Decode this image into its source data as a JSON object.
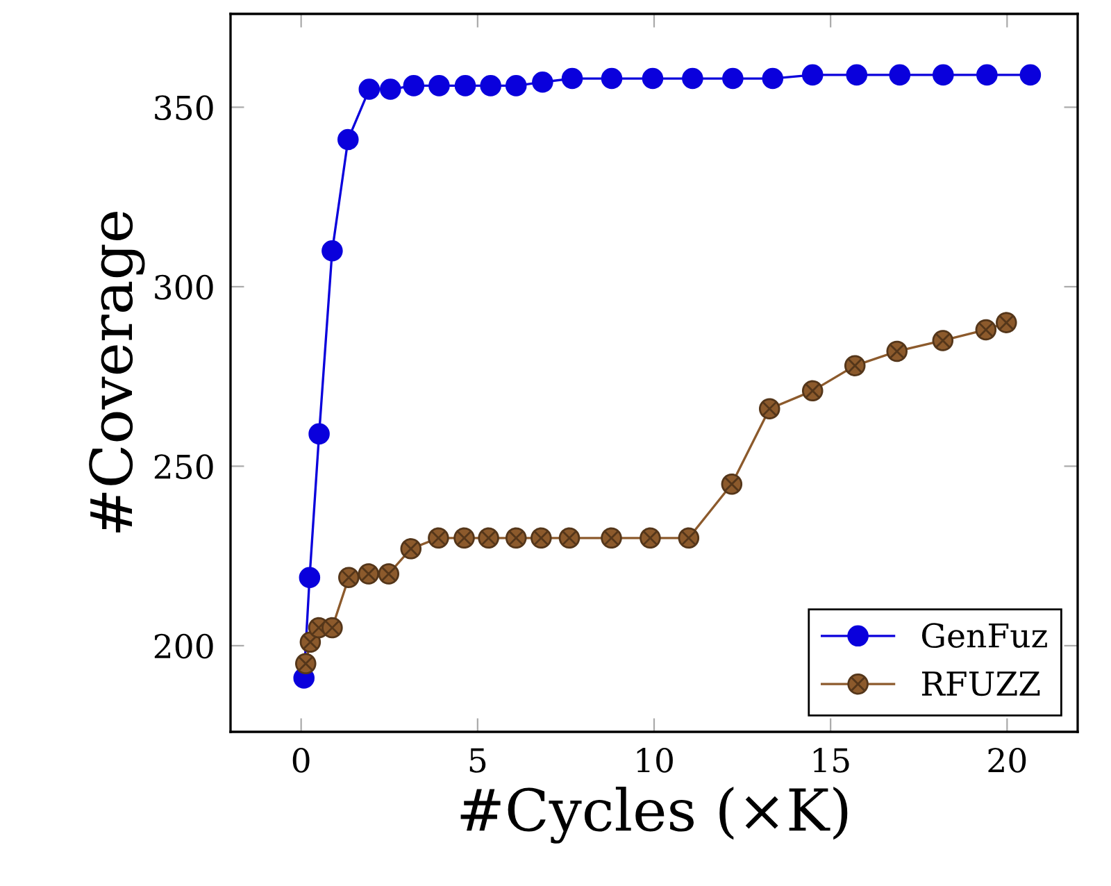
{
  "chart_data": {
    "type": "line",
    "xlabel": "#Cycles (×K)",
    "ylabel": "#Coverage",
    "xlim": [
      -2,
      22
    ],
    "ylim": [
      176,
      376
    ],
    "xticks": [
      0,
      5,
      10,
      15,
      20
    ],
    "yticks": [
      200,
      250,
      300,
      350
    ],
    "legend": "bottom right",
    "grid": false,
    "line_style": "solid",
    "series": [
      {
        "name": "GenFuz",
        "color": "#0a00dc",
        "marker": "circle",
        "x": [
          0.08,
          0.24,
          0.51,
          0.88,
          1.33,
          1.93,
          2.53,
          3.19,
          3.91,
          4.65,
          5.37,
          6.09,
          6.84,
          7.68,
          8.8,
          9.96,
          11.09,
          12.23,
          13.36,
          14.49,
          15.74,
          16.96,
          18.19,
          19.43,
          20.66
        ],
        "values": [
          191,
          219,
          259,
          310,
          341,
          355,
          355,
          356,
          356,
          356,
          356,
          356,
          357,
          358,
          358,
          358,
          358,
          358,
          358,
          359,
          359,
          359,
          359,
          359,
          359
        ]
      },
      {
        "name": "RFUZZ",
        "color": "#8c5a2c",
        "marker": "cross",
        "x": [
          0.13,
          0.26,
          0.5,
          0.88,
          1.35,
          1.91,
          2.48,
          3.11,
          3.89,
          4.62,
          5.31,
          6.09,
          6.8,
          7.6,
          8.79,
          9.89,
          10.98,
          12.2,
          13.27,
          14.49,
          15.69,
          16.88,
          18.18,
          19.4,
          19.98
        ],
        "values": [
          195,
          201,
          205,
          205,
          219,
          220,
          220,
          227,
          230,
          230,
          230,
          230,
          230,
          230,
          230,
          230,
          230,
          245,
          266,
          271,
          278,
          282,
          285,
          288,
          290
        ]
      }
    ]
  }
}
